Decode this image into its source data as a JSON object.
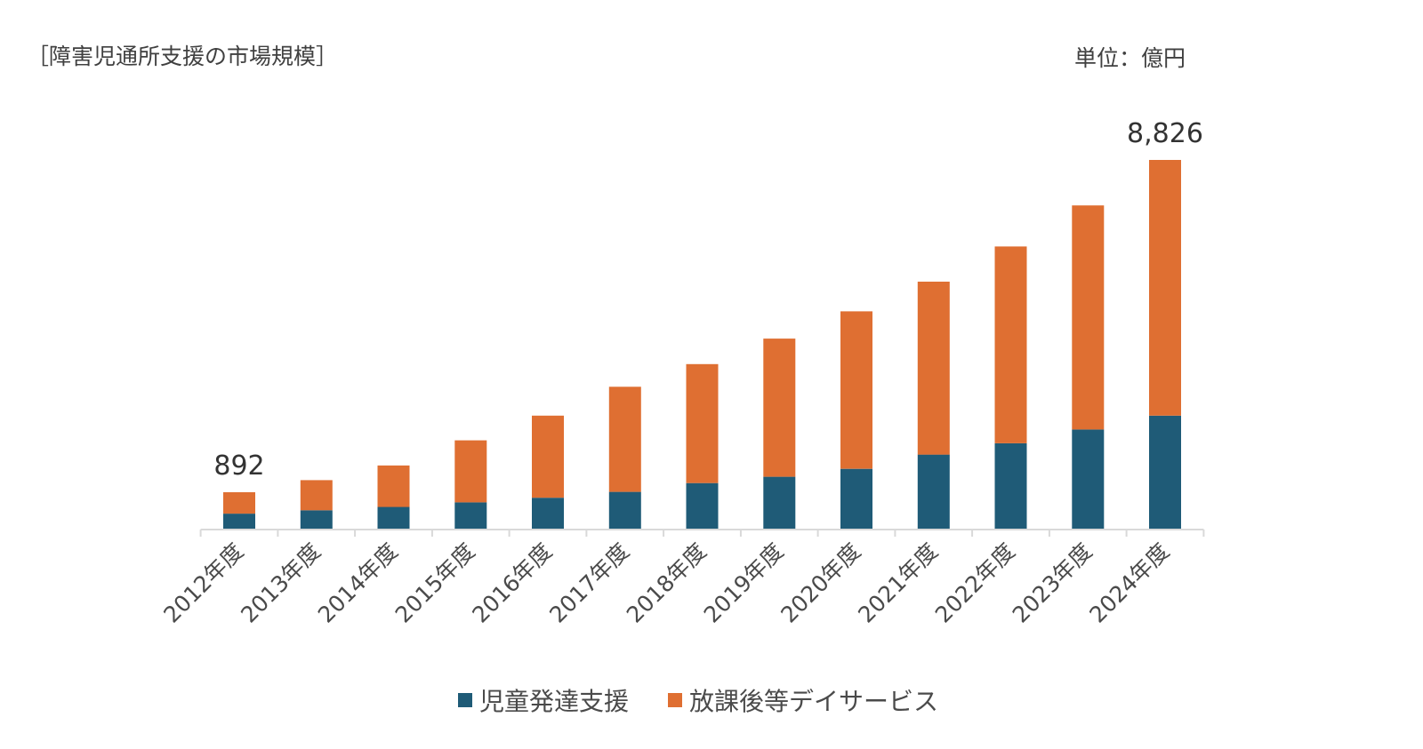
{
  "chart_title": "［障害児通所支援の市場規模］",
  "unit_label": "単位：億円",
  "colors": {
    "series_1": "#1f5b77",
    "series_2": "#df6f32",
    "axis": "#d9d9d9",
    "tick_label": "#4a4a4a"
  },
  "chart_data": {
    "type": "bar",
    "stacked": true,
    "categories": [
      "2012年度",
      "2013年度",
      "2014年度",
      "2015年度",
      "2016年度",
      "2017年度",
      "2018年度",
      "2019年度",
      "2020年度",
      "2021年度",
      "2022年度",
      "2023年度",
      "2024年度"
    ],
    "series": [
      {
        "name": "児童発達支援",
        "values": [
          380,
          460,
          540,
          650,
          760,
          900,
          1110,
          1260,
          1450,
          1790,
          2060,
          2390,
          2720
        ]
      },
      {
        "name": "放課後等デイサービス",
        "values": [
          512,
          720,
          990,
          1480,
          1960,
          2510,
          2840,
          3300,
          3760,
          4130,
          4700,
          5350,
          6106
        ]
      }
    ],
    "data_labels": [
      {
        "category": "2012年度",
        "text": "892"
      },
      {
        "category": "2024年度",
        "text": "8,826"
      }
    ],
    "ylim": [
      0,
      8826
    ],
    "legend_position": "bottom",
    "grid": false
  }
}
